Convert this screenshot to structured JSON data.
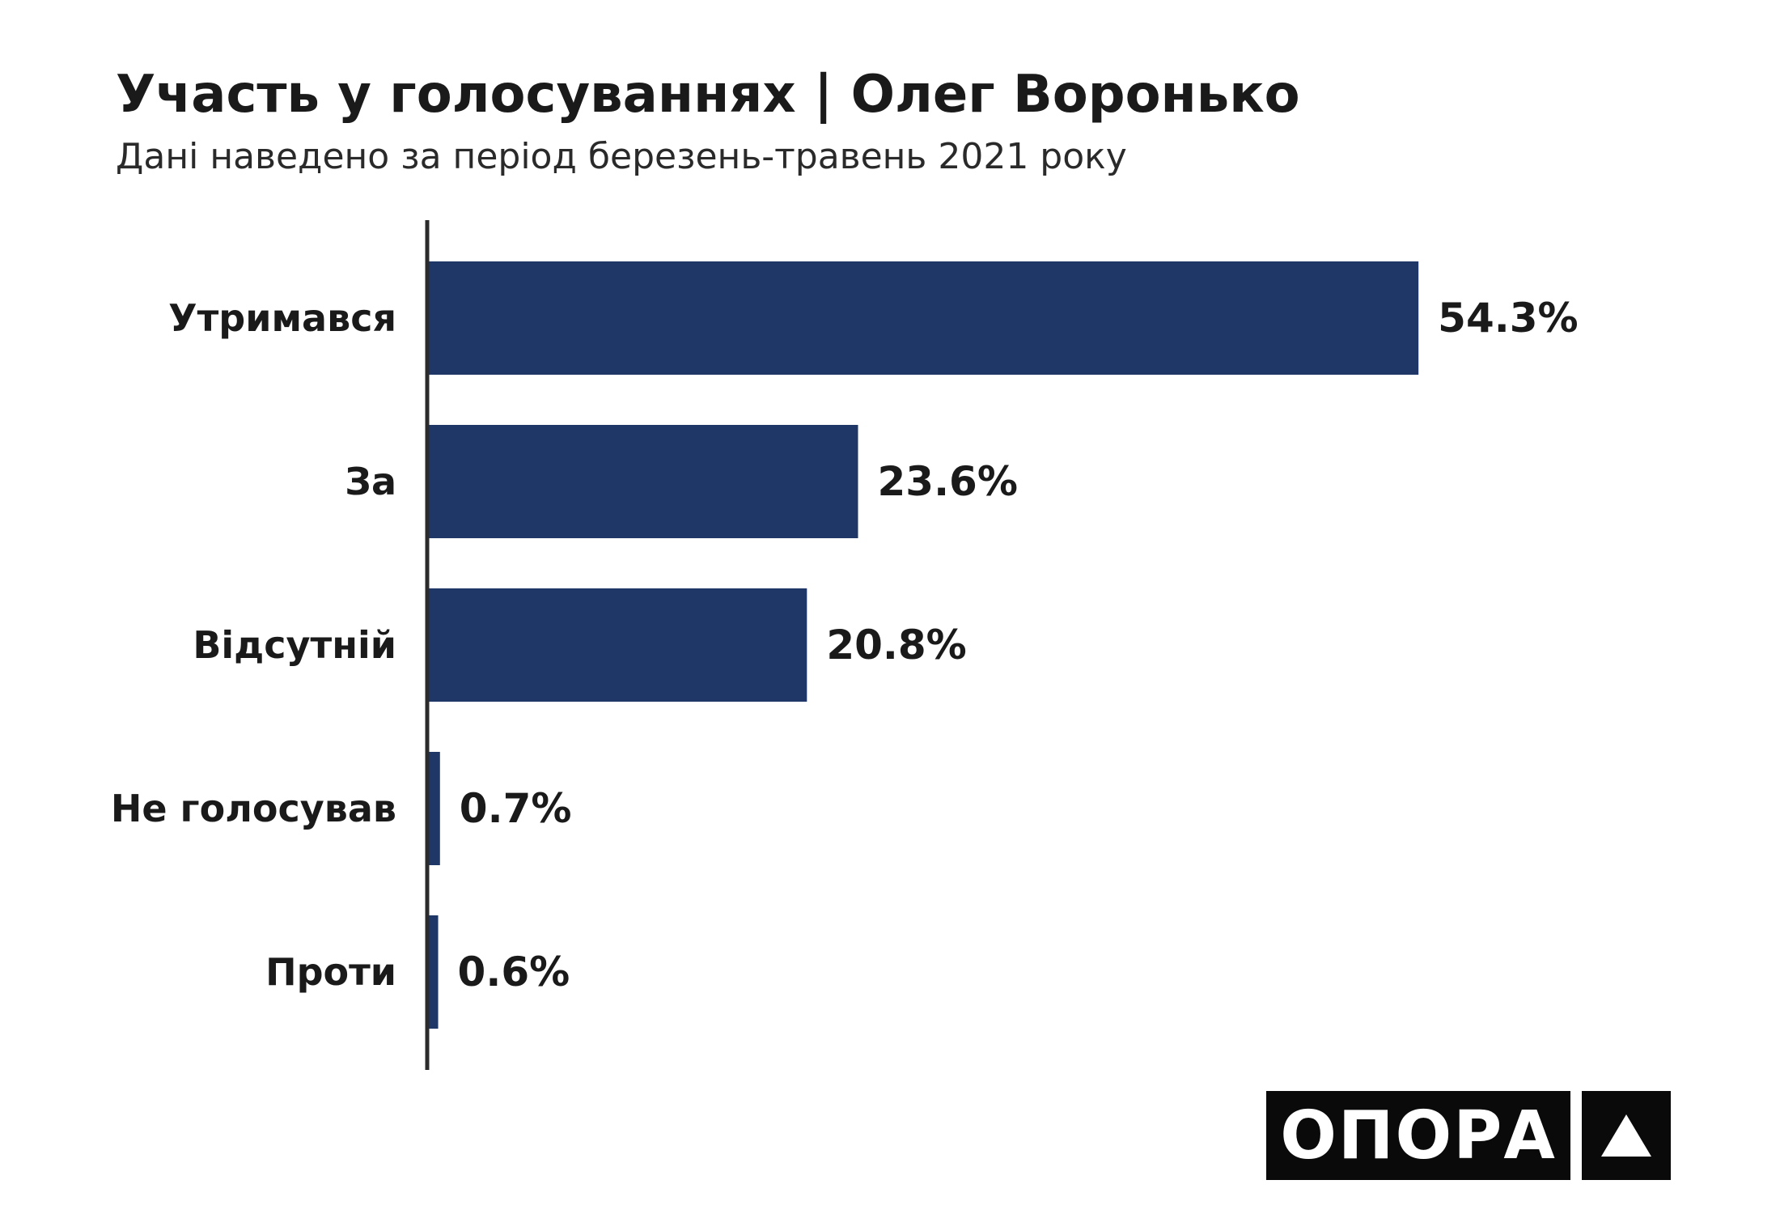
{
  "header": {
    "title": "Участь у голосуваннях | Олег Воронько",
    "subtitle": "Дані наведено за період березень-травень 2021 року"
  },
  "logo": {
    "text": "ОПОРА",
    "mark_icon": "triangle-icon"
  },
  "colors": {
    "bar": "#1f3766",
    "axis": "#2b2b2b",
    "text": "#1a1a1a"
  },
  "chart_data": {
    "type": "bar",
    "orientation": "horizontal",
    "categories": [
      "Утримався",
      "За",
      "Відсутній",
      "Не голосував",
      "Проти"
    ],
    "values": [
      54.3,
      23.6,
      20.8,
      0.7,
      0.6
    ],
    "value_labels": [
      "54.3%",
      "23.6%",
      "20.8%",
      "0.7%",
      "0.6%"
    ],
    "title": "Участь у голосуваннях | Олег Воронько",
    "subtitle": "Дані наведено за період березень-травень 2021 року",
    "xlabel": "",
    "ylabel": "",
    "xlim": [
      0,
      55.4
    ],
    "grid": false,
    "legend": "none"
  }
}
